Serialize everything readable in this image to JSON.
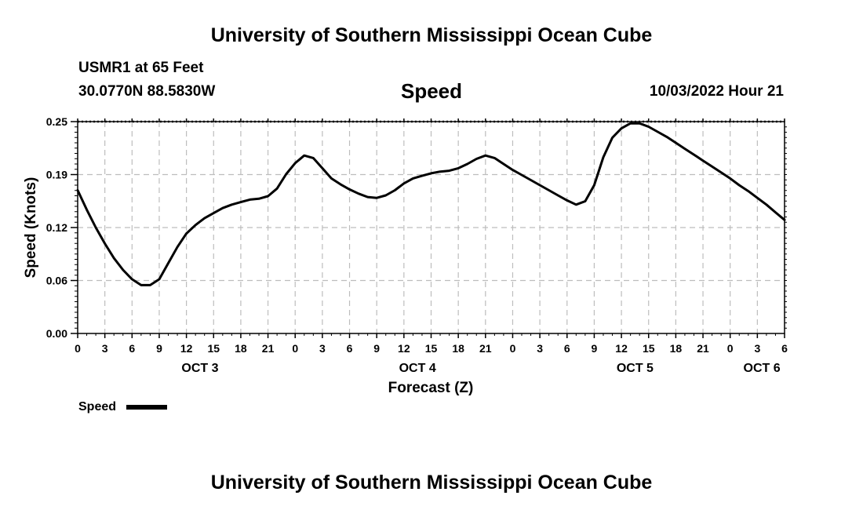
{
  "header": {
    "title": "University of Southern Mississippi Ocean Cube",
    "station": "USMR1 at 65 Feet",
    "location": "30.0770N  88.5830W",
    "variable": "Speed",
    "datetime": "10/03/2022 Hour 21"
  },
  "footer": {
    "title": "University of Southern Mississippi Ocean Cube"
  },
  "legend": {
    "label": "Speed"
  },
  "chart_data": {
    "type": "line",
    "title": "Speed",
    "xlabel": "Forecast (Z)",
    "ylabel": "Speed (Knots)",
    "ylim": [
      0,
      0.25
    ],
    "xlim": [
      0,
      78
    ],
    "x_unit": "hours since 00Z OCT 3",
    "yticks": [
      {
        "value": 0,
        "label": "0.00"
      },
      {
        "value": 0.0625,
        "label": "0.06"
      },
      {
        "value": 0.125,
        "label": "0.12"
      },
      {
        "value": 0.1875,
        "label": "0.19"
      },
      {
        "value": 0.25,
        "label": "0.25"
      }
    ],
    "xtick_labels": [
      "0",
      "3",
      "6",
      "9",
      "12",
      "15",
      "18",
      "21",
      "0",
      "3",
      "6",
      "9",
      "12",
      "15",
      "18",
      "21",
      "0",
      "3",
      "6",
      "9",
      "12",
      "15",
      "18",
      "21",
      "0",
      "3",
      "6"
    ],
    "day_labels": [
      {
        "hour": 13.5,
        "label": "OCT 3"
      },
      {
        "hour": 37.5,
        "label": "OCT 4"
      },
      {
        "hour": 61.5,
        "label": "OCT 5"
      },
      {
        "hour": 75.5,
        "label": "OCT 6"
      }
    ],
    "grid": true,
    "series": [
      {
        "name": "Speed",
        "x": [
          0,
          1,
          2,
          3,
          4,
          5,
          6,
          7,
          8,
          9,
          10,
          11,
          12,
          13,
          14,
          15,
          16,
          17,
          18,
          19,
          20,
          21,
          22,
          23,
          24,
          25,
          26,
          27,
          28,
          29,
          30,
          31,
          32,
          33,
          34,
          35,
          36,
          37,
          38,
          39,
          40,
          41,
          42,
          43,
          44,
          45,
          46,
          47,
          48,
          49,
          50,
          51,
          52,
          53,
          54,
          55,
          56,
          57,
          58,
          59,
          60,
          61,
          62,
          63,
          64,
          65,
          66,
          67,
          68,
          69,
          70,
          71,
          72,
          73,
          74,
          75,
          76,
          77,
          78
        ],
        "values": [
          0.169,
          0.146,
          0.125,
          0.106,
          0.089,
          0.075,
          0.064,
          0.057,
          0.057,
          0.064,
          0.083,
          0.102,
          0.118,
          0.128,
          0.136,
          0.142,
          0.148,
          0.152,
          0.155,
          0.158,
          0.159,
          0.162,
          0.171,
          0.188,
          0.201,
          0.21,
          0.207,
          0.195,
          0.183,
          0.176,
          0.17,
          0.165,
          0.161,
          0.16,
          0.163,
          0.169,
          0.177,
          0.183,
          0.186,
          0.189,
          0.191,
          0.192,
          0.195,
          0.2,
          0.206,
          0.21,
          0.207,
          0.2,
          0.193,
          0.187,
          0.181,
          0.175,
          0.169,
          0.163,
          0.157,
          0.152,
          0.156,
          0.175,
          0.208,
          0.231,
          0.242,
          0.248,
          0.248,
          0.244,
          0.238,
          0.232,
          0.225,
          0.218,
          0.211,
          0.204,
          0.197,
          0.19,
          0.183,
          0.175,
          0.168,
          0.16,
          0.152,
          0.143,
          0.134
        ]
      }
    ]
  }
}
